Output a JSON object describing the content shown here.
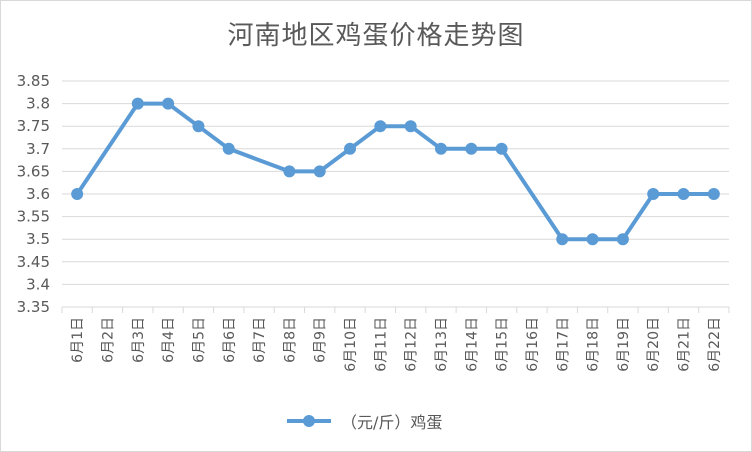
{
  "chart_data": {
    "type": "line",
    "title": "河南地区鸡蛋价格走势图",
    "xlabel": "",
    "ylabel": "",
    "categories": [
      "6月1日",
      "6月2日",
      "6月3日",
      "6月4日",
      "6月5日",
      "6月6日",
      "6月7日",
      "6月8日",
      "6月9日",
      "6月10日",
      "6月11日",
      "6月12日",
      "6月13日",
      "6月14日",
      "6月15日",
      "6月16日",
      "6月17日",
      "6月18日",
      "6月19日",
      "6月20日",
      "6月21日",
      "6月22日"
    ],
    "series": [
      {
        "name": "（元/斤）鸡蛋",
        "values": [
          3.6,
          null,
          3.8,
          3.8,
          3.75,
          3.7,
          null,
          3.65,
          3.65,
          3.7,
          3.75,
          3.75,
          3.7,
          3.7,
          3.7,
          null,
          3.5,
          3.5,
          3.5,
          3.6,
          3.6,
          3.6
        ],
        "color": "#5b9bd5"
      }
    ],
    "ylim": [
      3.35,
      3.85
    ],
    "yticks": [
      "3.35",
      "3.4",
      "3.45",
      "3.5",
      "3.55",
      "3.6",
      "3.65",
      "3.7",
      "3.75",
      "3.8",
      "3.85"
    ],
    "grid": true,
    "legend": "bottom"
  }
}
